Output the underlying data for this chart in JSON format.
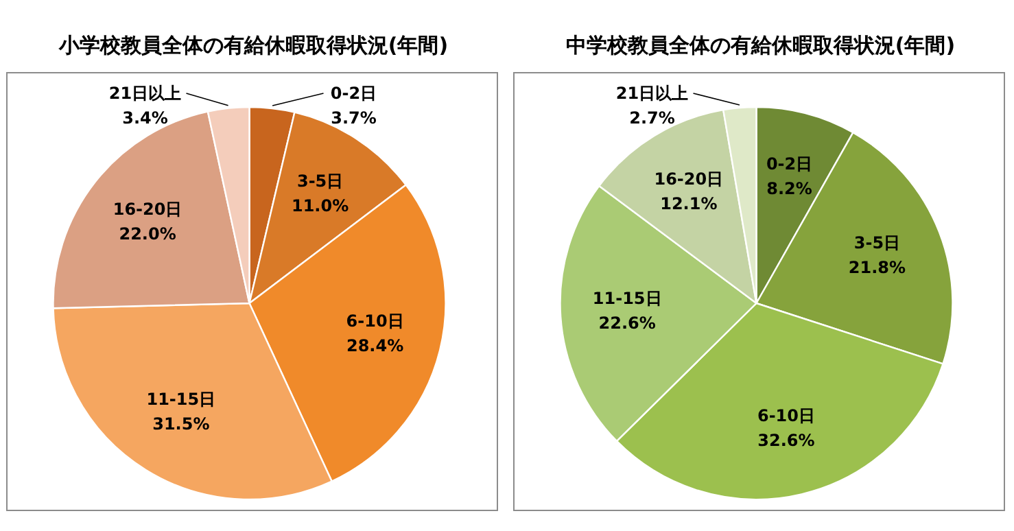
{
  "chart_data": [
    {
      "type": "pie",
      "title": "小学校教員全体の有給休暇取得状況(年間)",
      "categories": [
        "0-2日",
        "3-5日",
        "6-10日",
        "11-15日",
        "16-20日",
        "21日以上"
      ],
      "values": [
        3.7,
        11.0,
        28.4,
        31.5,
        22.0,
        3.4
      ],
      "value_labels": [
        "3.7%",
        "11.0%",
        "28.4%",
        "31.5%",
        "22.0%",
        "3.4%"
      ],
      "colors": [
        "#c8651e",
        "#d97a28",
        "#f08a2a",
        "#f5a660",
        "#dba083",
        "#f4cdbb"
      ]
    },
    {
      "type": "pie",
      "title": "中学校教員全体の有給休暇取得状況(年間)",
      "categories": [
        "0-2日",
        "3-5日",
        "6-10日",
        "11-15日",
        "16-20日",
        "21日以上"
      ],
      "values": [
        8.2,
        21.8,
        32.6,
        22.6,
        12.1,
        2.7
      ],
      "value_labels": [
        "8.2%",
        "21.8%",
        "32.6%",
        "22.6%",
        "12.1%",
        "2.7%"
      ],
      "colors": [
        "#6f8a34",
        "#86a33c",
        "#9cc04e",
        "#aacb74",
        "#c4d3a4",
        "#dfe9c8"
      ]
    }
  ]
}
